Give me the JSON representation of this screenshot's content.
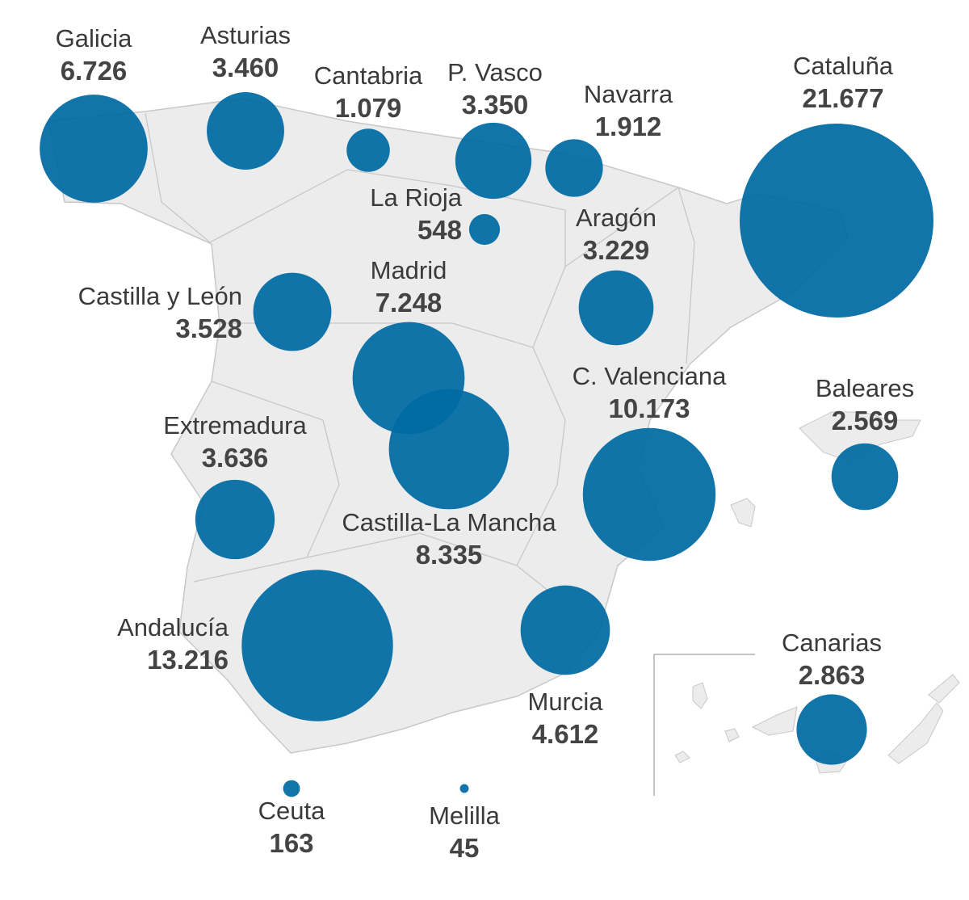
{
  "map": {
    "bubble_color": "#006aa3",
    "land_color": "#ececec",
    "regions": [
      {
        "name": "Galicia",
        "value": "6.726",
        "n": 6726
      },
      {
        "name": "Asturias",
        "value": "3.460",
        "n": 3460
      },
      {
        "name": "Cantabria",
        "value": "1.079",
        "n": 1079
      },
      {
        "name": "P. Vasco",
        "value": "3.350",
        "n": 3350
      },
      {
        "name": "Navarra",
        "value": "1.912",
        "n": 1912
      },
      {
        "name": "Cataluña",
        "value": "21.677",
        "n": 21677
      },
      {
        "name": "La Rioja",
        "value": "548",
        "n": 548
      },
      {
        "name": "Aragón",
        "value": "3.229",
        "n": 3229
      },
      {
        "name": "Castilla y León",
        "value": "3.528",
        "n": 3528
      },
      {
        "name": "Madrid",
        "value": "7.248",
        "n": 7248
      },
      {
        "name": "Castilla-La Mancha",
        "value": "8.335",
        "n": 8335
      },
      {
        "name": "Extremadura",
        "value": "3.636",
        "n": 3636
      },
      {
        "name": "C. Valenciana",
        "value": "10.173",
        "n": 10173
      },
      {
        "name": "Baleares",
        "value": "2.569",
        "n": 2569
      },
      {
        "name": "Andalucía",
        "value": "13.216",
        "n": 13216
      },
      {
        "name": "Murcia",
        "value": "4.612",
        "n": 4612
      },
      {
        "name": "Canarias",
        "value": "2.863",
        "n": 2863
      },
      {
        "name": "Ceuta",
        "value": "163",
        "n": 163
      },
      {
        "name": "Melilla",
        "value": "45",
        "n": 45
      }
    ]
  }
}
